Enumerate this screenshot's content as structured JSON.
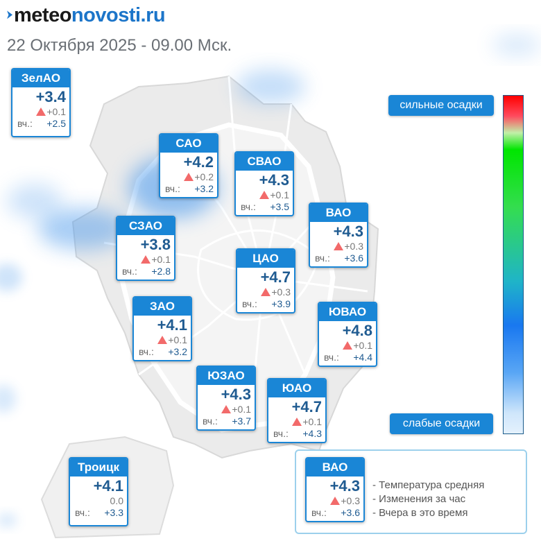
{
  "header": {
    "logo_part1": "meteo",
    "logo_part2": "novosti.ru",
    "date_time": "22 Октября 2025 - 09.00 Мск."
  },
  "yesterday_label": "вч.:",
  "districts": [
    {
      "id": "zelao",
      "name": "ЗелАО",
      "temp": "+3.4",
      "change": "+0.1",
      "trend": "up",
      "yesterday": "+2.5"
    },
    {
      "id": "sao",
      "name": "САО",
      "temp": "+4.2",
      "change": "+0.2",
      "trend": "up",
      "yesterday": "+3.2"
    },
    {
      "id": "svao",
      "name": "СВАО",
      "temp": "+4.3",
      "change": "+0.1",
      "trend": "up",
      "yesterday": "+3.5"
    },
    {
      "id": "vao",
      "name": "ВАО",
      "temp": "+4.3",
      "change": "+0.3",
      "trend": "up",
      "yesterday": "+3.6"
    },
    {
      "id": "szao",
      "name": "СЗАО",
      "temp": "+3.8",
      "change": "+0.1",
      "trend": "up",
      "yesterday": "+2.8"
    },
    {
      "id": "cao",
      "name": "ЦАО",
      "temp": "+4.7",
      "change": "+0.3",
      "trend": "up",
      "yesterday": "+3.9"
    },
    {
      "id": "zao",
      "name": "ЗАО",
      "temp": "+4.1",
      "change": "+0.1",
      "trend": "up",
      "yesterday": "+3.2"
    },
    {
      "id": "yuvao",
      "name": "ЮВАО",
      "temp": "+4.8",
      "change": "+0.1",
      "trend": "up",
      "yesterday": "+4.4"
    },
    {
      "id": "yuzao",
      "name": "ЮЗАО",
      "temp": "+4.3",
      "change": "+0.1",
      "trend": "up",
      "yesterday": "+3.7"
    },
    {
      "id": "yuao",
      "name": "ЮАО",
      "temp": "+4.7",
      "change": "+0.1",
      "trend": "up",
      "yesterday": "+4.3"
    },
    {
      "id": "troitsk",
      "name": "Троицк",
      "temp": "+4.1",
      "change": "0.0",
      "trend": "none",
      "yesterday": "+3.3"
    }
  ],
  "precip_legend": {
    "strong_label": "сильные осадки",
    "weak_label": "слабые осадки"
  },
  "key": {
    "sample": {
      "name": "ВАО",
      "temp": "+4.3",
      "change": "+0.3",
      "yesterday": "+3.6"
    },
    "note_temp": "- Температура средняя",
    "note_change": "- Изменения за час",
    "note_yesterday": "- Вчера в это время"
  },
  "colors": {
    "accent": "#1a86d6",
    "temp_text": "#1f5b91",
    "trend_up": "#f26a6a"
  }
}
